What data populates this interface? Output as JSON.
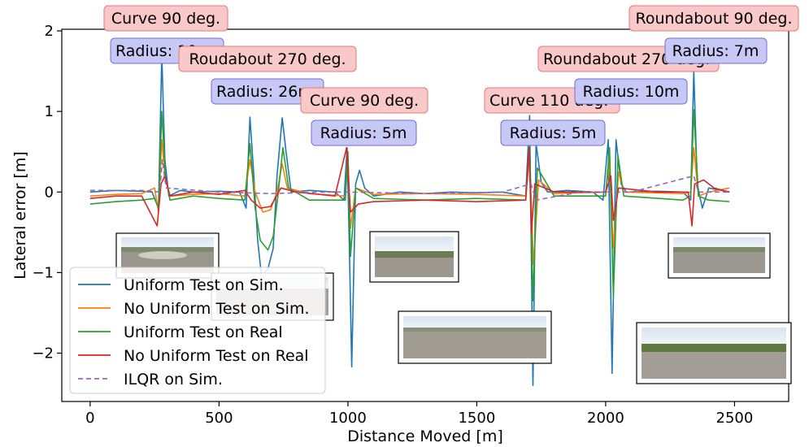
{
  "chart_data": {
    "type": "line",
    "xlabel": "Distance Moved [m]",
    "ylabel": "Lateral error [m]",
    "xlim": [
      -110,
      2710
    ],
    "ylim": [
      -2.6,
      2.02
    ],
    "xticks": [
      0,
      500,
      1000,
      1500,
      2000,
      2500
    ],
    "yticks": [
      -2,
      -1,
      0,
      1,
      2
    ],
    "xtick_labels": [
      "0",
      "500",
      "1000",
      "1500",
      "2000",
      "2500"
    ],
    "ytick_labels": [
      "−2",
      "−1",
      "0",
      "1",
      "2"
    ],
    "grid": false,
    "legend_position": "bottom-left",
    "series": [
      {
        "name": "Uniform Test on Sim.",
        "color": "#1f77b4",
        "dash": "",
        "points": [
          [
            0,
            0.0
          ],
          [
            100,
            0.02
          ],
          [
            200,
            0.01
          ],
          [
            240,
            0.0
          ],
          [
            265,
            -0.2
          ],
          [
            278,
            1.7
          ],
          [
            290,
            0.4
          ],
          [
            305,
            -0.05
          ],
          [
            350,
            0.02
          ],
          [
            400,
            0.0
          ],
          [
            500,
            0.01
          ],
          [
            580,
            0.0
          ],
          [
            605,
            -0.2
          ],
          [
            620,
            0.93
          ],
          [
            635,
            0.2
          ],
          [
            650,
            -0.6
          ],
          [
            665,
            -1.05
          ],
          [
            690,
            -0.95
          ],
          [
            710,
            -0.7
          ],
          [
            725,
            0.2
          ],
          [
            745,
            0.92
          ],
          [
            760,
            0.5
          ],
          [
            780,
            0.0
          ],
          [
            850,
            0.02
          ],
          [
            950,
            0.0
          ],
          [
            985,
            -0.1
          ],
          [
            997,
            0.55
          ],
          [
            1005,
            -0.6
          ],
          [
            1015,
            -2.17
          ],
          [
            1030,
            0.1
          ],
          [
            1045,
            0.27
          ],
          [
            1065,
            0.05
          ],
          [
            1100,
            -0.05
          ],
          [
            1200,
            0.0
          ],
          [
            1300,
            -0.02
          ],
          [
            1400,
            0.0
          ],
          [
            1500,
            -0.01
          ],
          [
            1600,
            0.0
          ],
          [
            1690,
            -0.05
          ],
          [
            1705,
            0.95
          ],
          [
            1718,
            -2.4
          ],
          [
            1730,
            0.6
          ],
          [
            1750,
            0.12
          ],
          [
            1775,
            0.0
          ],
          [
            1850,
            0.02
          ],
          [
            1950,
            0.0
          ],
          [
            1990,
            -0.1
          ],
          [
            2010,
            0.65
          ],
          [
            2025,
            -2.25
          ],
          [
            2040,
            0.65
          ],
          [
            2060,
            0.1
          ],
          [
            2080,
            0.0
          ],
          [
            2200,
            0.01
          ],
          [
            2300,
            0.0
          ],
          [
            2330,
            -0.1
          ],
          [
            2342,
            1.5
          ],
          [
            2355,
            0.1
          ],
          [
            2375,
            -0.2
          ],
          [
            2400,
            0.05
          ],
          [
            2480,
            0.0
          ]
        ]
      },
      {
        "name": "No Uniform Test on Sim.",
        "color": "#ff7f0e",
        "dash": "",
        "points": [
          [
            0,
            -0.05
          ],
          [
            100,
            -0.03
          ],
          [
            200,
            -0.02
          ],
          [
            250,
            0.05
          ],
          [
            265,
            -0.25
          ],
          [
            278,
            0.65
          ],
          [
            292,
            0.15
          ],
          [
            310,
            -0.05
          ],
          [
            400,
            -0.03
          ],
          [
            500,
            -0.02
          ],
          [
            600,
            -0.05
          ],
          [
            620,
            0.4
          ],
          [
            640,
            0.0
          ],
          [
            670,
            -0.25
          ],
          [
            700,
            -0.22
          ],
          [
            725,
            0.0
          ],
          [
            745,
            0.35
          ],
          [
            765,
            0.05
          ],
          [
            850,
            -0.02
          ],
          [
            990,
            -0.05
          ],
          [
            1000,
            0.45
          ],
          [
            1010,
            -0.45
          ],
          [
            1030,
            0.05
          ],
          [
            1100,
            -0.03
          ],
          [
            1300,
            -0.02
          ],
          [
            1500,
            -0.03
          ],
          [
            1690,
            -0.05
          ],
          [
            1705,
            0.45
          ],
          [
            1720,
            -0.9
          ],
          [
            1740,
            0.15
          ],
          [
            1800,
            -0.02
          ],
          [
            2000,
            0.0
          ],
          [
            2015,
            0.35
          ],
          [
            2030,
            -0.7
          ],
          [
            2050,
            0.25
          ],
          [
            2070,
            0.0
          ],
          [
            2300,
            -0.02
          ],
          [
            2330,
            0.0
          ],
          [
            2342,
            0.55
          ],
          [
            2360,
            -0.05
          ],
          [
            2400,
            0.0
          ],
          [
            2480,
            0.05
          ]
        ]
      },
      {
        "name": "Uniform Test on Real",
        "color": "#2ca02c",
        "dash": "",
        "points": [
          [
            0,
            -0.15
          ],
          [
            100,
            -0.12
          ],
          [
            200,
            -0.1
          ],
          [
            250,
            -0.08
          ],
          [
            265,
            -0.2
          ],
          [
            278,
            1.0
          ],
          [
            292,
            0.2
          ],
          [
            310,
            -0.1
          ],
          [
            400,
            -0.05
          ],
          [
            500,
            -0.08
          ],
          [
            600,
            -0.1
          ],
          [
            620,
            0.6
          ],
          [
            640,
            -0.2
          ],
          [
            660,
            -0.6
          ],
          [
            690,
            -0.72
          ],
          [
            710,
            -0.55
          ],
          [
            730,
            0.0
          ],
          [
            748,
            0.55
          ],
          [
            770,
            0.05
          ],
          [
            850,
            -0.1
          ],
          [
            990,
            -0.1
          ],
          [
            1000,
            0.5
          ],
          [
            1010,
            -0.8
          ],
          [
            1030,
            0.05
          ],
          [
            1100,
            -0.08
          ],
          [
            1300,
            -0.1
          ],
          [
            1500,
            -0.08
          ],
          [
            1690,
            -0.1
          ],
          [
            1705,
            0.6
          ],
          [
            1718,
            -1.35
          ],
          [
            1735,
            0.3
          ],
          [
            1800,
            -0.05
          ],
          [
            2000,
            -0.05
          ],
          [
            2015,
            0.55
          ],
          [
            2030,
            -1.3
          ],
          [
            2048,
            0.45
          ],
          [
            2070,
            -0.05
          ],
          [
            2300,
            -0.1
          ],
          [
            2330,
            -0.05
          ],
          [
            2342,
            1.02
          ],
          [
            2360,
            -0.05
          ],
          [
            2400,
            -0.1
          ],
          [
            2480,
            -0.12
          ]
        ]
      },
      {
        "name": "No Uniform Test on Real",
        "color": "#d62728",
        "dash": "",
        "points": [
          [
            0,
            -0.08
          ],
          [
            100,
            -0.05
          ],
          [
            200,
            -0.05
          ],
          [
            260,
            -0.42
          ],
          [
            275,
            0.1
          ],
          [
            290,
            0.2
          ],
          [
            310,
            -0.05
          ],
          [
            400,
            0.0
          ],
          [
            500,
            -0.03
          ],
          [
            600,
            0.02
          ],
          [
            625,
            -0.1
          ],
          [
            660,
            -0.2
          ],
          [
            700,
            -0.18
          ],
          [
            740,
            0.05
          ],
          [
            800,
            0.0
          ],
          [
            950,
            -0.05
          ],
          [
            995,
            0.55
          ],
          [
            1010,
            -0.25
          ],
          [
            1040,
            -0.15
          ],
          [
            1100,
            -0.12
          ],
          [
            1300,
            -0.1
          ],
          [
            1500,
            -0.12
          ],
          [
            1690,
            -0.1
          ],
          [
            1703,
            0.55
          ],
          [
            1712,
            -0.52
          ],
          [
            1725,
            0.1
          ],
          [
            1800,
            0.0
          ],
          [
            2000,
            0.0
          ],
          [
            2020,
            0.2
          ],
          [
            2030,
            -0.35
          ],
          [
            2050,
            0.05
          ],
          [
            2200,
            0.0
          ],
          [
            2320,
            0.0
          ],
          [
            2335,
            -0.42
          ],
          [
            2345,
            0.1
          ],
          [
            2380,
            0.15
          ],
          [
            2420,
            0.05
          ],
          [
            2480,
            0.0
          ]
        ]
      },
      {
        "name": "ILQR on Sim.",
        "color": "#9467bd",
        "dash": "6,4",
        "points": [
          [
            0,
            0.02
          ],
          [
            200,
            0.02
          ],
          [
            270,
            0.0
          ],
          [
            280,
            0.4
          ],
          [
            295,
            0.05
          ],
          [
            500,
            0.0
          ],
          [
            700,
            -0.02
          ],
          [
            900,
            0.0
          ],
          [
            1000,
            0.0
          ],
          [
            1300,
            -0.02
          ],
          [
            1600,
            0.0
          ],
          [
            1710,
            0.1
          ],
          [
            1730,
            -0.1
          ],
          [
            1900,
            0.0
          ],
          [
            2100,
            0.0
          ],
          [
            2342,
            0.2
          ],
          [
            2360,
            0.0
          ],
          [
            2480,
            0.0
          ]
        ]
      }
    ],
    "annotations": [
      {
        "text": "Curve 90 deg.",
        "style": "red"
      },
      {
        "text": "Radius: 10m",
        "style": "blue"
      },
      {
        "text": "Roudabout 270 deg.",
        "style": "red"
      },
      {
        "text": "Radius: 26m",
        "style": "blue"
      },
      {
        "text": "Curve 90 deg.",
        "style": "red"
      },
      {
        "text": "Radius: 5m",
        "style": "blue"
      },
      {
        "text": "Curve 110 deg.",
        "style": "red"
      },
      {
        "text": "Radius: 5m",
        "style": "blue"
      },
      {
        "text": "Roundabout 270 deg.",
        "style": "red"
      },
      {
        "text": "Radius: 10m",
        "style": "blue"
      },
      {
        "text": "Roundabout 90 deg.",
        "style": "red"
      },
      {
        "text": "Radius: 7m",
        "style": "blue"
      }
    ]
  },
  "colors": {
    "annotation_red_fill": "#f9c9c9",
    "annotation_red_stroke": "#e87777",
    "annotation_blue_fill": "#c8c8f7",
    "annotation_blue_stroke": "#6f6fd6"
  }
}
